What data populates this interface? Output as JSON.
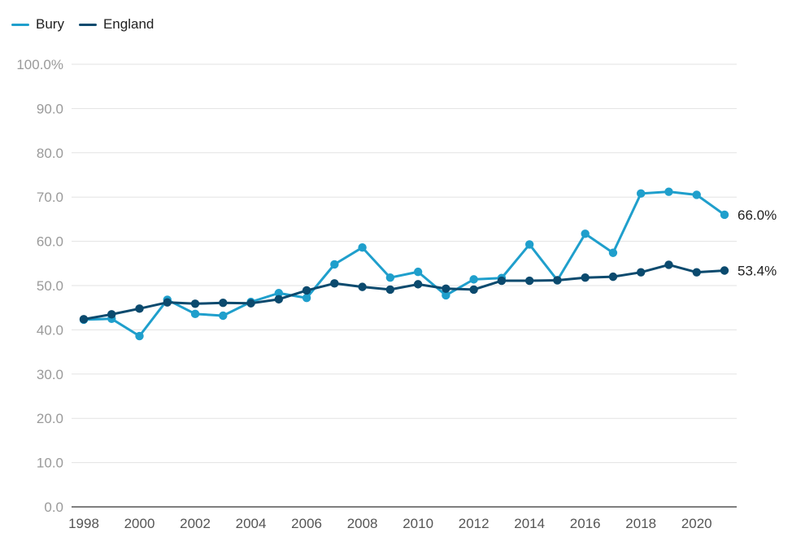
{
  "chart_data": {
    "type": "line",
    "title": "",
    "xlabel": "",
    "ylabel": "",
    "x": [
      1998,
      1999,
      2000,
      2001,
      2002,
      2003,
      2004,
      2005,
      2006,
      2007,
      2008,
      2009,
      2010,
      2011,
      2012,
      2013,
      2014,
      2015,
      2016,
      2017,
      2018,
      2019,
      2020,
      2021
    ],
    "x_ticks": [
      "1998",
      "2000",
      "2002",
      "2004",
      "2006",
      "2008",
      "2010",
      "2012",
      "2014",
      "2016",
      "2018",
      "2020"
    ],
    "y_ticks": [
      "0.0",
      "10.0",
      "20.0",
      "30.0",
      "40.0",
      "50.0",
      "60.0",
      "70.0",
      "80.0",
      "90.0",
      "100.0%"
    ],
    "ylim": [
      0,
      100
    ],
    "grid": true,
    "legend_position": "top-left",
    "series": [
      {
        "name": "Bury",
        "color": "#1f9fcc",
        "values": [
          42.3,
          42.5,
          38.6,
          46.8,
          43.6,
          43.2,
          46.3,
          48.3,
          47.2,
          54.8,
          58.6,
          51.8,
          53.1,
          47.8,
          51.4,
          51.7,
          59.3,
          51.2,
          61.7,
          57.4,
          70.8,
          71.2,
          70.5,
          66.0
        ],
        "end_label": "66.0%"
      },
      {
        "name": "England",
        "color": "#0b4a6e",
        "values": [
          42.4,
          43.5,
          44.8,
          46.2,
          45.9,
          46.1,
          46.0,
          46.9,
          48.9,
          50.5,
          49.7,
          49.1,
          50.3,
          49.3,
          49.1,
          51.1,
          51.1,
          51.2,
          51.8,
          52.0,
          53.0,
          54.7,
          53.0,
          53.4
        ],
        "end_label": "53.4%"
      }
    ]
  }
}
